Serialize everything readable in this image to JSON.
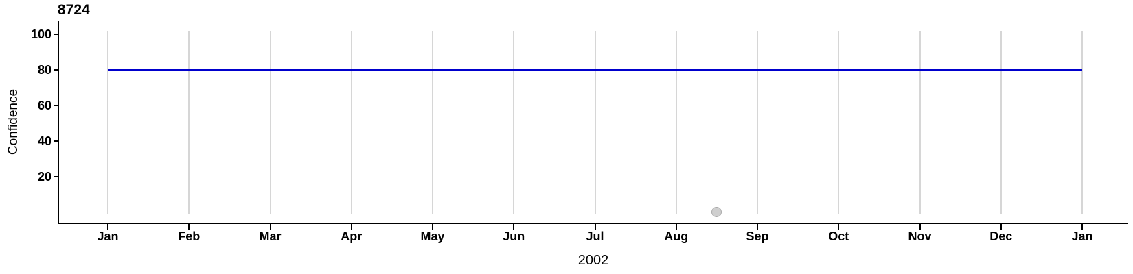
{
  "chart_data": {
    "type": "line",
    "title": "8724",
    "xlabel": "2002",
    "ylabel": "Confidence",
    "x_tick_labels": [
      "Jan",
      "Feb",
      "Mar",
      "Apr",
      "May",
      "Jun",
      "Jul",
      "Aug",
      "Sep",
      "Oct",
      "Nov",
      "Dec",
      "Jan"
    ],
    "y_tick_values": [
      20,
      40,
      60,
      80,
      100
    ],
    "ylim": [
      0,
      105
    ],
    "x_encoding": "month index 0-12 starting at Jan 2002",
    "grid": {
      "vertical": true,
      "horizontal": false
    },
    "axis_color": "#000000",
    "gridline_color": "#d6d6d6",
    "series": [
      {
        "name": "confidence-level-line",
        "type": "line",
        "color": "#0000cd",
        "x": [
          0,
          12
        ],
        "y": [
          80,
          80
        ]
      }
    ],
    "points": [
      {
        "name": "observation-dot",
        "type": "scatter",
        "x": 7.5,
        "x_approx": "mid-Aug 2002",
        "y": 0,
        "fill": "#cfcfcf",
        "stroke": "#a8a8a8"
      }
    ]
  }
}
